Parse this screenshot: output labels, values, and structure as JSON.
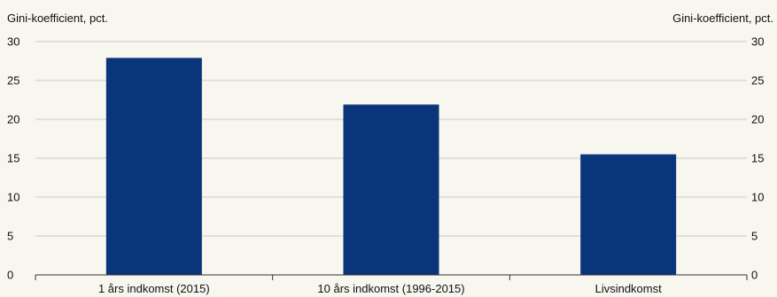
{
  "chart_data": {
    "type": "bar",
    "ylabel_left": "Gini-koefficient, pct.",
    "ylabel_right": "Gini-koefficient, pct.",
    "categories": [
      "1 års indkomst (2015)",
      "10 års indkomst (1996-2015)",
      "Livsindkomst"
    ],
    "values": [
      27.9,
      21.9,
      15.5
    ],
    "ylim": [
      0,
      30
    ],
    "yticks": [
      0,
      5,
      10,
      15,
      20,
      25,
      30
    ],
    "grid": true,
    "bar_color": "#0b357a"
  }
}
